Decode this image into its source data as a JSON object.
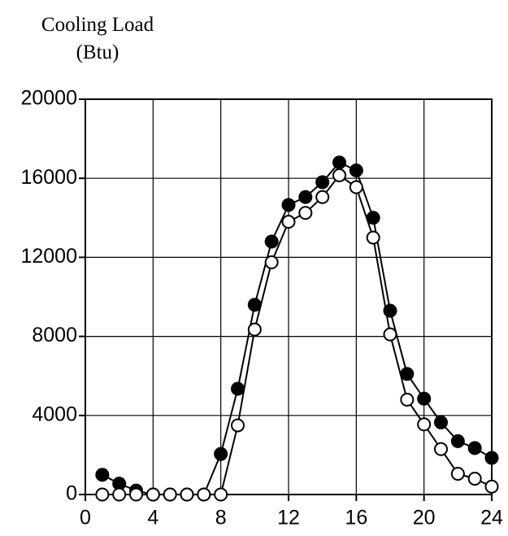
{
  "chart_data": {
    "type": "line",
    "ylabel": [
      "Cooling Load",
      "(Btu)"
    ],
    "x": [
      1,
      2,
      3,
      4,
      5,
      6,
      7,
      8,
      9,
      10,
      11,
      12,
      13,
      14,
      15,
      16,
      17,
      18,
      19,
      20,
      21,
      22,
      23,
      24
    ],
    "series": [
      {
        "color": "#000000",
        "marker": "filled",
        "values": [
          1000,
          550,
          200,
          0,
          0,
          0,
          0,
          2050,
          5350,
          9600,
          12800,
          14650,
          15050,
          15800,
          16800,
          16400,
          14000,
          9300,
          6100,
          4850,
          3650,
          2700,
          2350,
          1850
        ]
      },
      {
        "color": "#000000",
        "marker": "open",
        "values": [
          0,
          0,
          0,
          0,
          0,
          0,
          0,
          0,
          3500,
          8350,
          11750,
          13800,
          14250,
          15050,
          16150,
          15550,
          13000,
          8100,
          4800,
          3550,
          2300,
          1050,
          800,
          400
        ]
      }
    ],
    "xlim": [
      0,
      24
    ],
    "xticks": [
      0,
      4,
      8,
      12,
      16,
      20,
      24
    ],
    "ylim": [
      0,
      20000
    ],
    "yticks": [
      0,
      4000,
      8000,
      12000,
      16000,
      20000
    ],
    "grid": true
  }
}
